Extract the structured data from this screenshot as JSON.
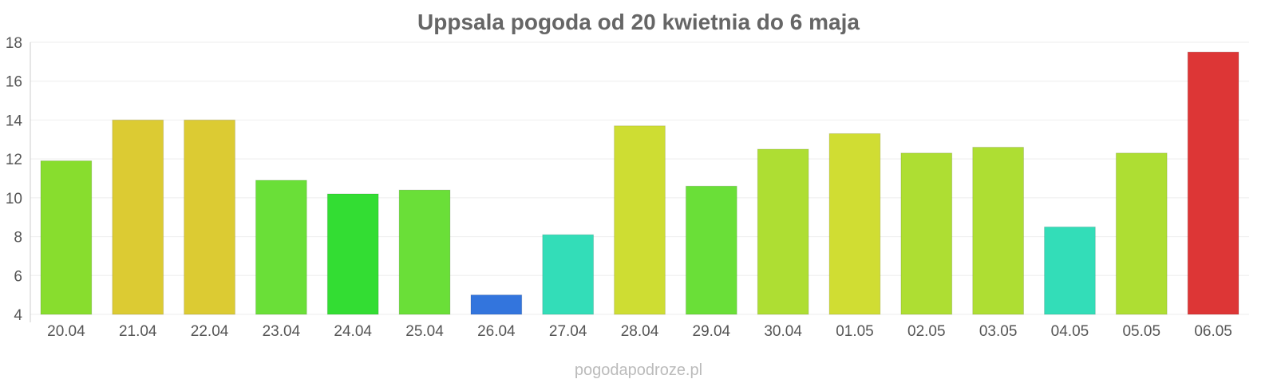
{
  "chart_data": {
    "type": "bar",
    "title": "Uppsala pogoda od 20 kwietnia do 6 maja",
    "categories": [
      "20.04",
      "21.04",
      "22.04",
      "23.04",
      "24.04",
      "25.04",
      "26.04",
      "27.04",
      "28.04",
      "29.04",
      "30.04",
      "01.05",
      "02.05",
      "03.05",
      "04.05",
      "05.05",
      "06.05"
    ],
    "values": [
      11.9,
      14.0,
      14.0,
      10.9,
      10.2,
      10.4,
      5.0,
      8.1,
      13.7,
      10.6,
      12.5,
      13.3,
      12.3,
      12.6,
      8.5,
      12.3,
      17.5
    ],
    "colors": [
      "#88dd2e",
      "#dccb33",
      "#dccb33",
      "#6adf38",
      "#33dd33",
      "#6adf38",
      "#3375dd",
      "#33ddb8",
      "#cedd33",
      "#6adf38",
      "#aede33",
      "#d0dd33",
      "#aede33",
      "#aede33",
      "#33ddb8",
      "#aede33",
      "#dd3636"
    ],
    "xlabel": "",
    "ylabel": "",
    "ylim": [
      4,
      18
    ],
    "yticks": [
      4,
      6,
      8,
      10,
      12,
      14,
      16,
      18
    ],
    "grid": true,
    "legend": "none"
  },
  "source": "pogodapodroze.pl"
}
